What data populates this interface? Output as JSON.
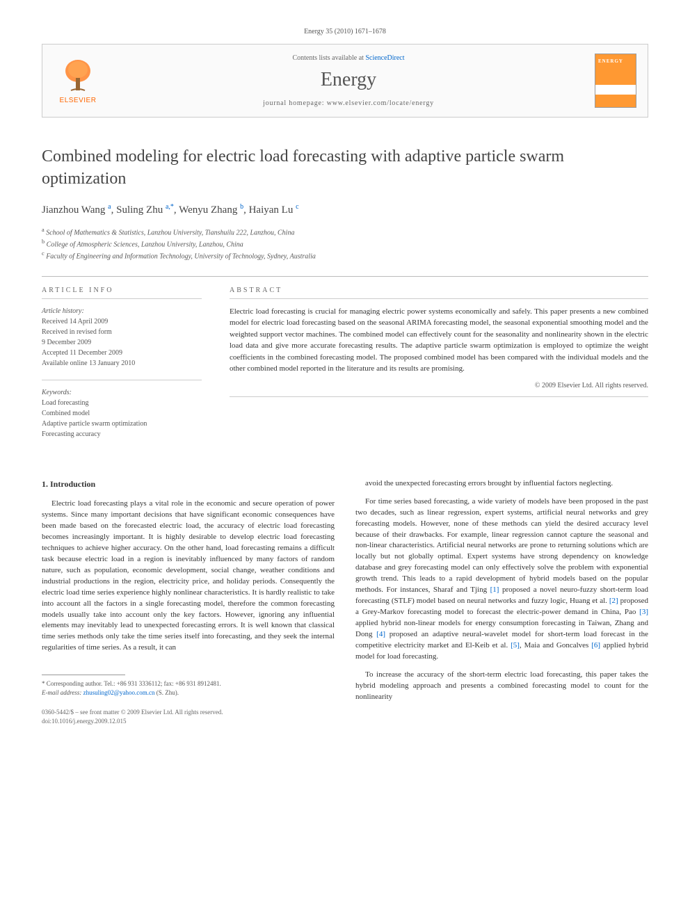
{
  "journal_ref": "Energy 35 (2010) 1671–1678",
  "header": {
    "contents_prefix": "Contents lists available at ",
    "contents_link": "ScienceDirect",
    "journal_name": "Energy",
    "homepage_prefix": "journal homepage: ",
    "homepage_url": "www.elsevier.com/locate/energy",
    "elsevier_label": "ELSEVIER",
    "cover_label": "ENERGY"
  },
  "title": "Combined modeling for electric load forecasting with adaptive particle swarm optimization",
  "authors_html": "Jianzhou Wang <sup>a</sup>, Suling Zhu <sup>a,*</sup>, Wenyu Zhang <sup>b</sup>, Haiyan Lu <sup>c</sup>",
  "affiliations": [
    {
      "sup": "a",
      "text": "School of Mathematics & Statistics, Lanzhou University, Tianshuilu 222, Lanzhou, China"
    },
    {
      "sup": "b",
      "text": "College of Atmospheric Sciences, Lanzhou University, Lanzhou, China"
    },
    {
      "sup": "c",
      "text": "Faculty of Engineering and Information Technology, University of Technology, Sydney, Australia"
    }
  ],
  "info": {
    "heading": "ARTICLE INFO",
    "history_label": "Article history:",
    "history": [
      "Received 14 April 2009",
      "Received in revised form",
      "9 December 2009",
      "Accepted 11 December 2009",
      "Available online 13 January 2010"
    ],
    "keywords_label": "Keywords:",
    "keywords": [
      "Load forecasting",
      "Combined model",
      "Adaptive particle swarm optimization",
      "Forecasting accuracy"
    ]
  },
  "abstract": {
    "heading": "ABSTRACT",
    "text": "Electric load forecasting is crucial for managing electric power systems economically and safely. This paper presents a new combined model for electric load forecasting based on the seasonal ARIMA forecasting model, the seasonal exponential smoothing model and the weighted support vector machines. The combined model can effectively count for the seasonality and nonlinearity shown in the electric load data and give more accurate forecasting results. The adaptive particle swarm optimization is employed to optimize the weight coefficients in the combined forecasting model. The proposed combined model has been compared with the individual models and the other combined model reported in the literature and its results are promising.",
    "copyright": "© 2009 Elsevier Ltd. All rights reserved."
  },
  "section1_heading": "1. Introduction",
  "col_left": [
    "Electric load forecasting plays a vital role in the economic and secure operation of power systems. Since many important decisions that have significant economic consequences have been made based on the forecasted electric load, the accuracy of electric load forecasting becomes increasingly important. It is highly desirable to develop electric load forecasting techniques to achieve higher accuracy. On the other hand, load forecasting remains a difficult task because electric load in a region is inevitably influenced by many factors of random nature, such as population, economic development, social change, weather conditions and industrial productions in the region, electricity price, and holiday periods. Consequently the electric load time series experience highly nonlinear characteristics. It is hardly realistic to take into account all the factors in a single forecasting model, therefore the common forecasting models usually take into account only the key factors. However, ignoring any influential elements may inevitably lead to unexpected forecasting errors. It is well known that classical time series methods only take the time series itself into forecasting, and they seek the internal regularities of time series. As a result, it can"
  ],
  "col_right": [
    "avoid the unexpected forecasting errors brought by influential factors neglecting.",
    "For time series based forecasting, a wide variety of models have been proposed in the past two decades, such as linear regression, expert systems, artificial neural networks and grey forecasting models. However, none of these methods can yield the desired accuracy level because of their drawbacks. For example, linear regression cannot capture the seasonal and non-linear characteristics. Artificial neural networks are prone to returning solutions which are locally but not globally optimal. Expert systems have strong dependency on knowledge database and grey forecasting model can only effectively solve the problem with exponential growth trend. This leads to a rapid development of hybrid models based on the popular methods. For instances, Sharaf and Tjing [1] proposed a novel neuro-fuzzy short-term load forecasting (STLF) model based on neural networks and fuzzy logic, Huang et al. [2] proposed a Grey-Markov forecasting model to forecast the electric-power demand in China, Pao [3] applied hybrid non-linear models for energy consumption forecasting in Taiwan, Zhang and Dong [4] proposed an adaptive neural-wavelet model for short-term load forecast in the competitive electricity market and El-Keib et al. [5], Maia and Goncalves [6] applied hybrid model for load forecasting.",
    "To increase the accuracy of the short-term electric load forecasting, this paper takes the hybrid modeling approach and presents a combined forecasting model to count for the nonlinearity"
  ],
  "footnote": {
    "corresponding": "* Corresponding author. Tel.: +86 931 3336112; fax: +86 931 8912481.",
    "email_label": "E-mail address: ",
    "email": "zhusuling02@yahoo.com.cn",
    "email_suffix": " (S. Zhu)."
  },
  "footer": {
    "line1": "0360-5442/$ – see front matter © 2009 Elsevier Ltd. All rights reserved.",
    "line2": "doi:10.1016/j.energy.2009.12.015"
  },
  "colors": {
    "link": "#0066cc",
    "elsevier_orange": "#ff6600",
    "cover_bg": "#ff9933"
  }
}
